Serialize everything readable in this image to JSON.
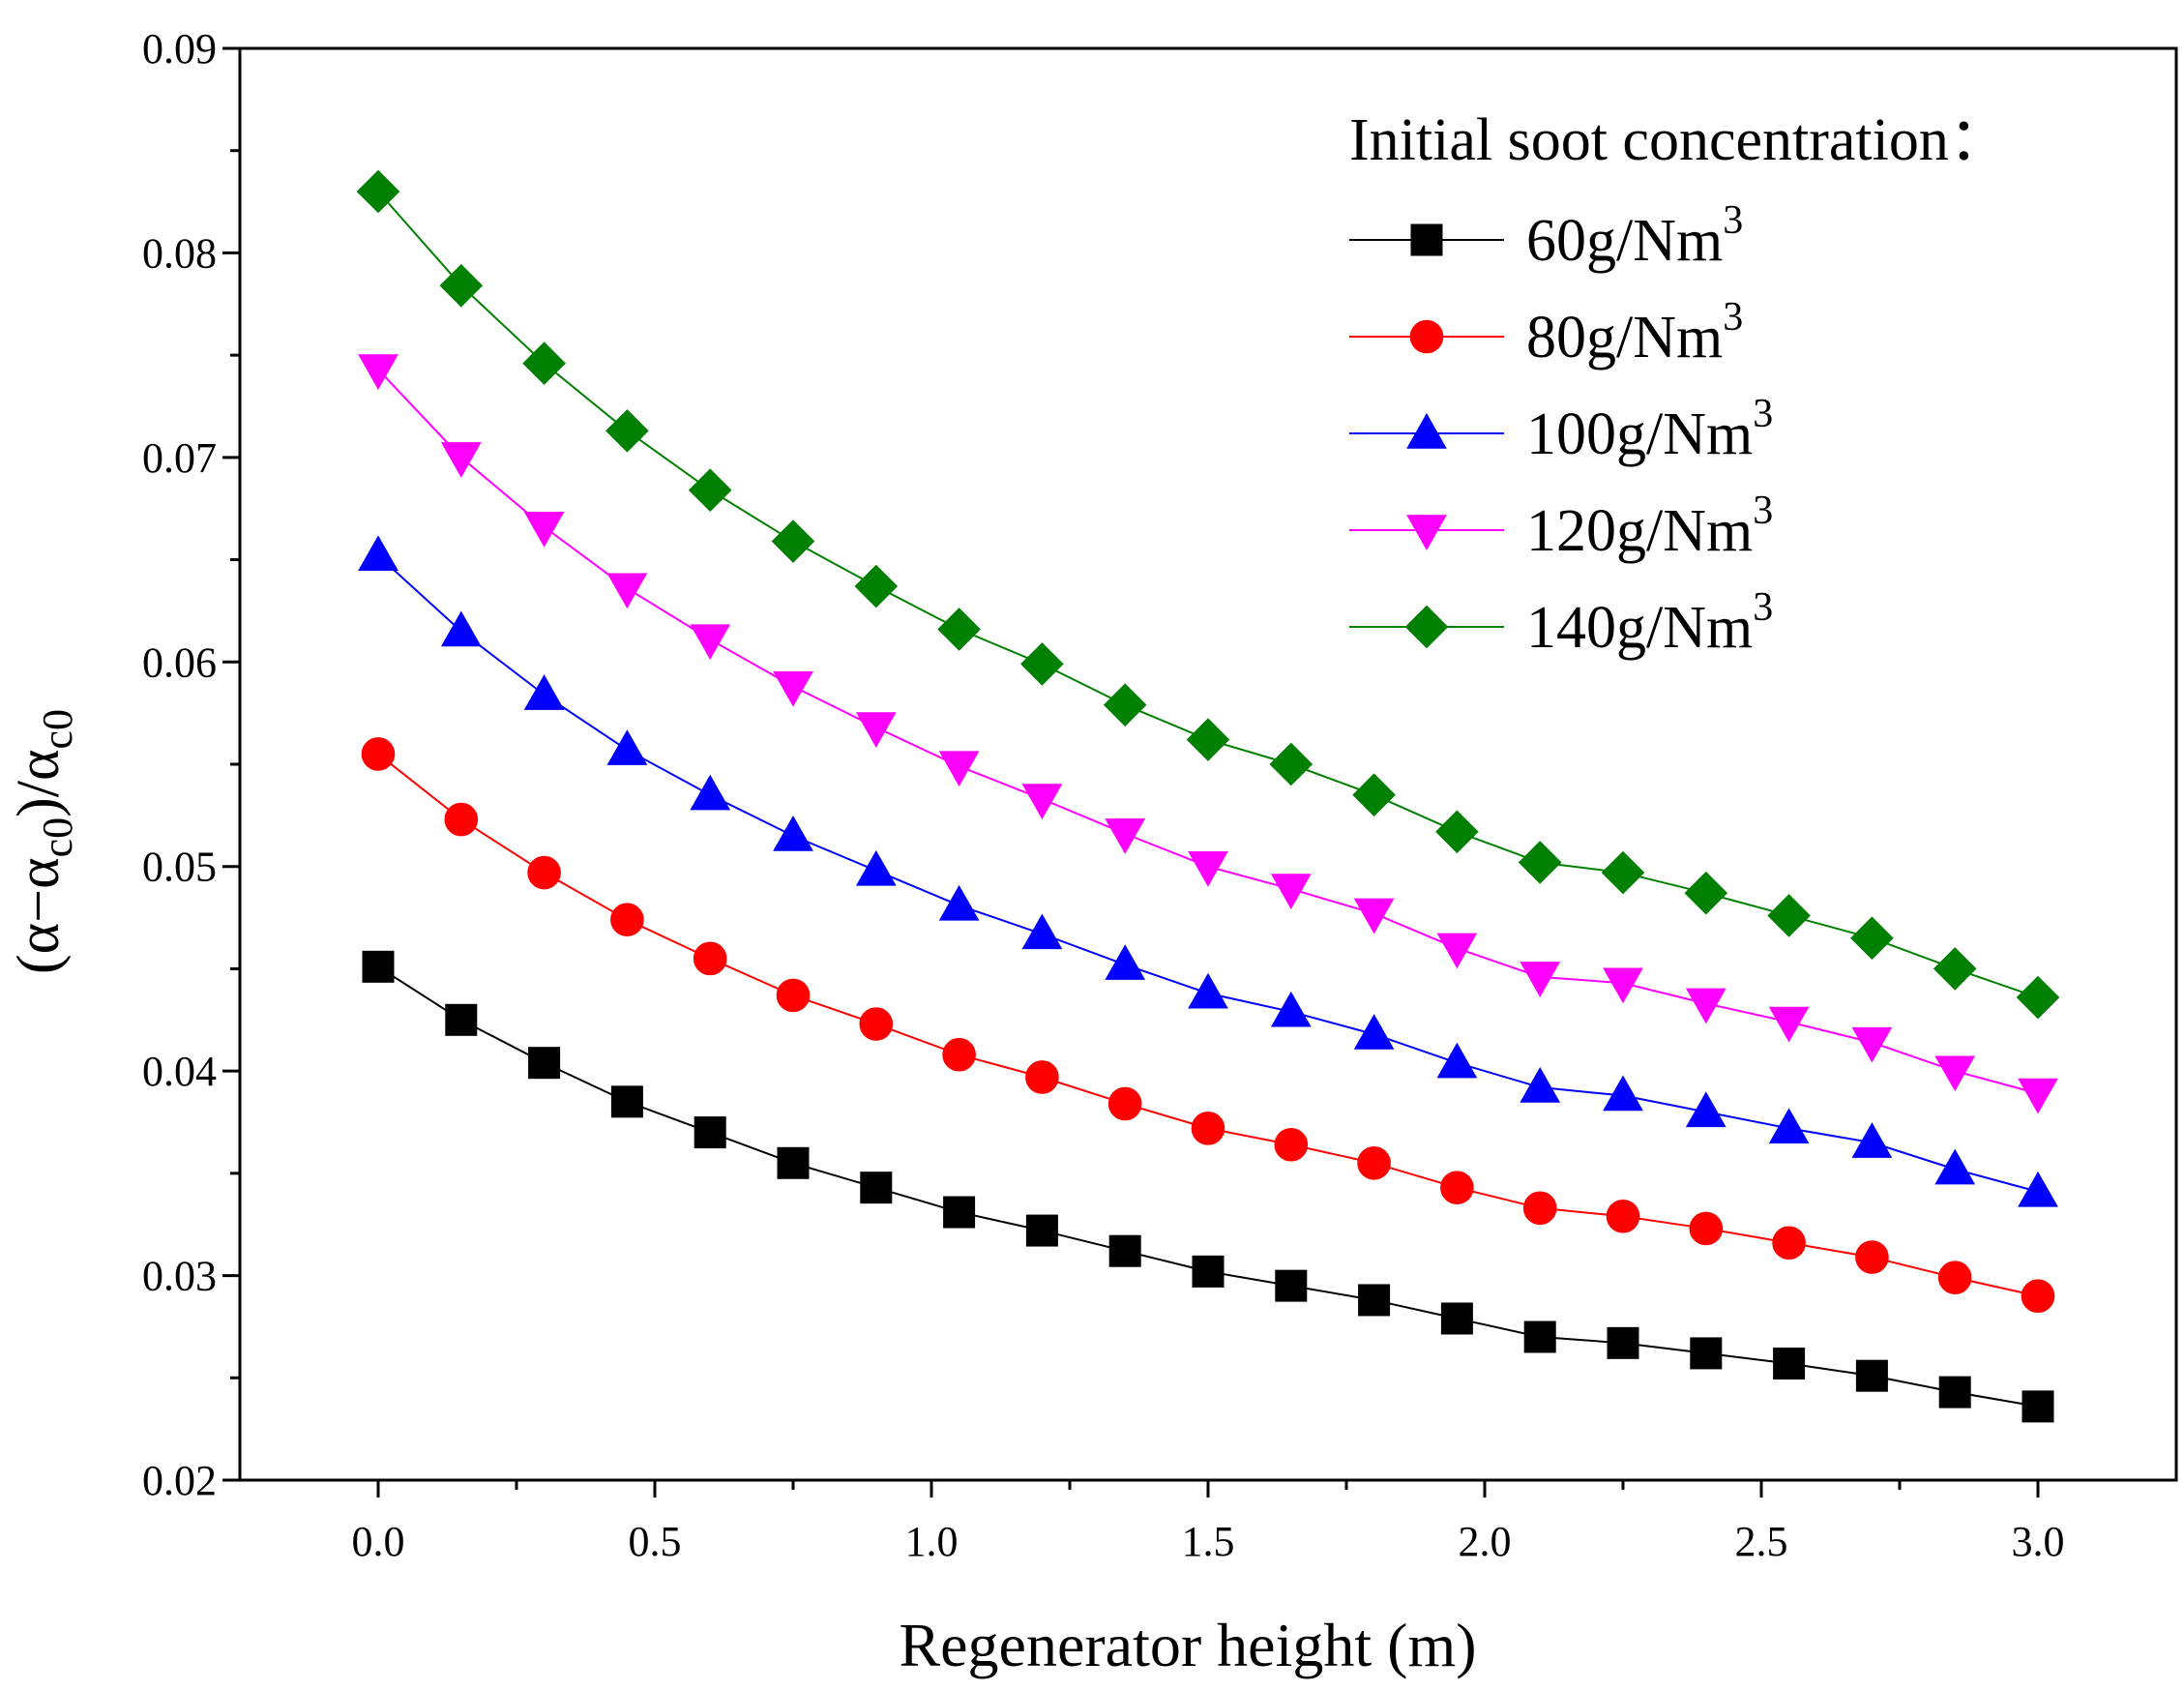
{
  "chart_data": {
    "type": "line",
    "title": "",
    "xlabel": "Regenerator height (m)",
    "ylabel": {
      "open": "(α−α",
      "sub1": "c0",
      "mid": ")/α",
      "sub2": "c0"
    },
    "xlim": [
      -0.25,
      3.25
    ],
    "ylim": [
      0.02,
      0.09
    ],
    "x_ticks": [
      "0.0",
      "0.5",
      "1.0",
      "1.5",
      "2.0",
      "2.5",
      "3.0"
    ],
    "y_ticks": [
      "0.02",
      "0.03",
      "0.04",
      "0.05",
      "0.06",
      "0.07",
      "0.08",
      "0.09"
    ],
    "legend_title": "Initial soot concentration：",
    "legend_position": "top-right",
    "x": [
      0.0,
      0.15,
      0.3,
      0.45,
      0.6,
      0.75,
      0.9,
      1.05,
      1.2,
      1.35,
      1.5,
      1.65,
      1.8,
      1.95,
      2.1,
      2.25,
      2.4,
      2.55,
      2.7,
      2.85,
      3.0
    ],
    "series": [
      {
        "name": "60g/Nm",
        "sup": "3",
        "color": "#000000",
        "marker": "square",
        "values": [
          0.0451,
          0.0425,
          0.0404,
          0.0385,
          0.037,
          0.0355,
          0.0343,
          0.0331,
          0.0322,
          0.0312,
          0.0302,
          0.0295,
          0.0288,
          0.0279,
          0.027,
          0.0267,
          0.0262,
          0.0257,
          0.0251,
          0.0243,
          0.0236
        ]
      },
      {
        "name": "80g/Nm",
        "sup": "3",
        "color": "#ff0000",
        "marker": "circle",
        "values": [
          0.0555,
          0.0523,
          0.0497,
          0.0474,
          0.0455,
          0.0437,
          0.0423,
          0.0408,
          0.0397,
          0.0384,
          0.0372,
          0.0364,
          0.0355,
          0.0343,
          0.0333,
          0.0329,
          0.0323,
          0.0316,
          0.0309,
          0.0299,
          0.029
        ]
      },
      {
        "name": "100g/Nm",
        "sup": "3",
        "color": "#0000ff",
        "marker": "triangle-up",
        "values": [
          0.0652,
          0.0615,
          0.0584,
          0.0557,
          0.0535,
          0.0515,
          0.0498,
          0.0481,
          0.0467,
          0.0452,
          0.0438,
          0.0429,
          0.0418,
          0.0404,
          0.0392,
          0.0388,
          0.038,
          0.0372,
          0.0365,
          0.0352,
          0.0341
        ]
      },
      {
        "name": "120g/Nm",
        "sup": "3",
        "color": "#ff00ff",
        "marker": "triangle-down",
        "values": [
          0.0743,
          0.07,
          0.0666,
          0.0636,
          0.0611,
          0.0588,
          0.0568,
          0.0549,
          0.0533,
          0.0516,
          0.05,
          0.0489,
          0.0477,
          0.046,
          0.0446,
          0.0443,
          0.0433,
          0.0424,
          0.0414,
          0.04,
          0.0389
        ]
      },
      {
        "name": "140g/Nm",
        "sup": "3",
        "color": "#008000",
        "marker": "diamond",
        "values": [
          0.083,
          0.0784,
          0.0746,
          0.0713,
          0.0684,
          0.0659,
          0.0637,
          0.0616,
          0.0599,
          0.0579,
          0.0562,
          0.055,
          0.0535,
          0.0517,
          0.0502,
          0.0497,
          0.0487,
          0.0476,
          0.0465,
          0.045,
          0.0436
        ]
      }
    ]
  }
}
